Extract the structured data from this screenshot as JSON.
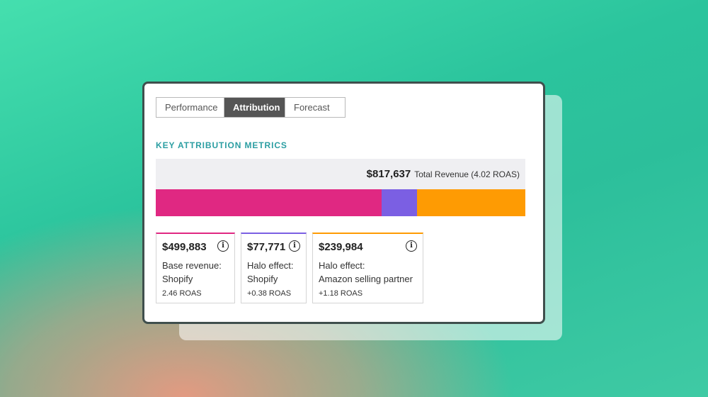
{
  "tabs": [
    {
      "label": "Performance",
      "active": false
    },
    {
      "label": "Attribution",
      "active": true
    },
    {
      "label": "Forecast",
      "active": false
    }
  ],
  "section_title": "KEY ATTRIBUTION METRICS",
  "total": {
    "value": "$817,637",
    "label": "Total Revenue (4.02 ROAS)"
  },
  "bar_segments": [
    {
      "name": "Base revenue: Shopify",
      "value": 499883,
      "color": "#e02882"
    },
    {
      "name": "Halo effect: Shopify",
      "value": 77771,
      "color": "#7b5fe3"
    },
    {
      "name": "Halo effect: Amazon selling partner",
      "value": 239984,
      "color": "#fe9b03"
    }
  ],
  "cards": [
    {
      "value": "$499,883",
      "title_line1": "Base revenue:",
      "title_line2": "Shopify",
      "roas": "2.46 ROAS",
      "color": "#e02882"
    },
    {
      "value": "$77,771",
      "title_line1": "Halo effect:",
      "title_line2": "Shopify",
      "roas": "+0.38 ROAS",
      "color": "#7b5fe3"
    },
    {
      "value": "$239,984",
      "title_line1": "Halo effect:",
      "title_line2": "Amazon selling partner",
      "roas": "+1.18 ROAS",
      "color": "#fe9b03"
    }
  ],
  "info_icon": "info-circle"
}
